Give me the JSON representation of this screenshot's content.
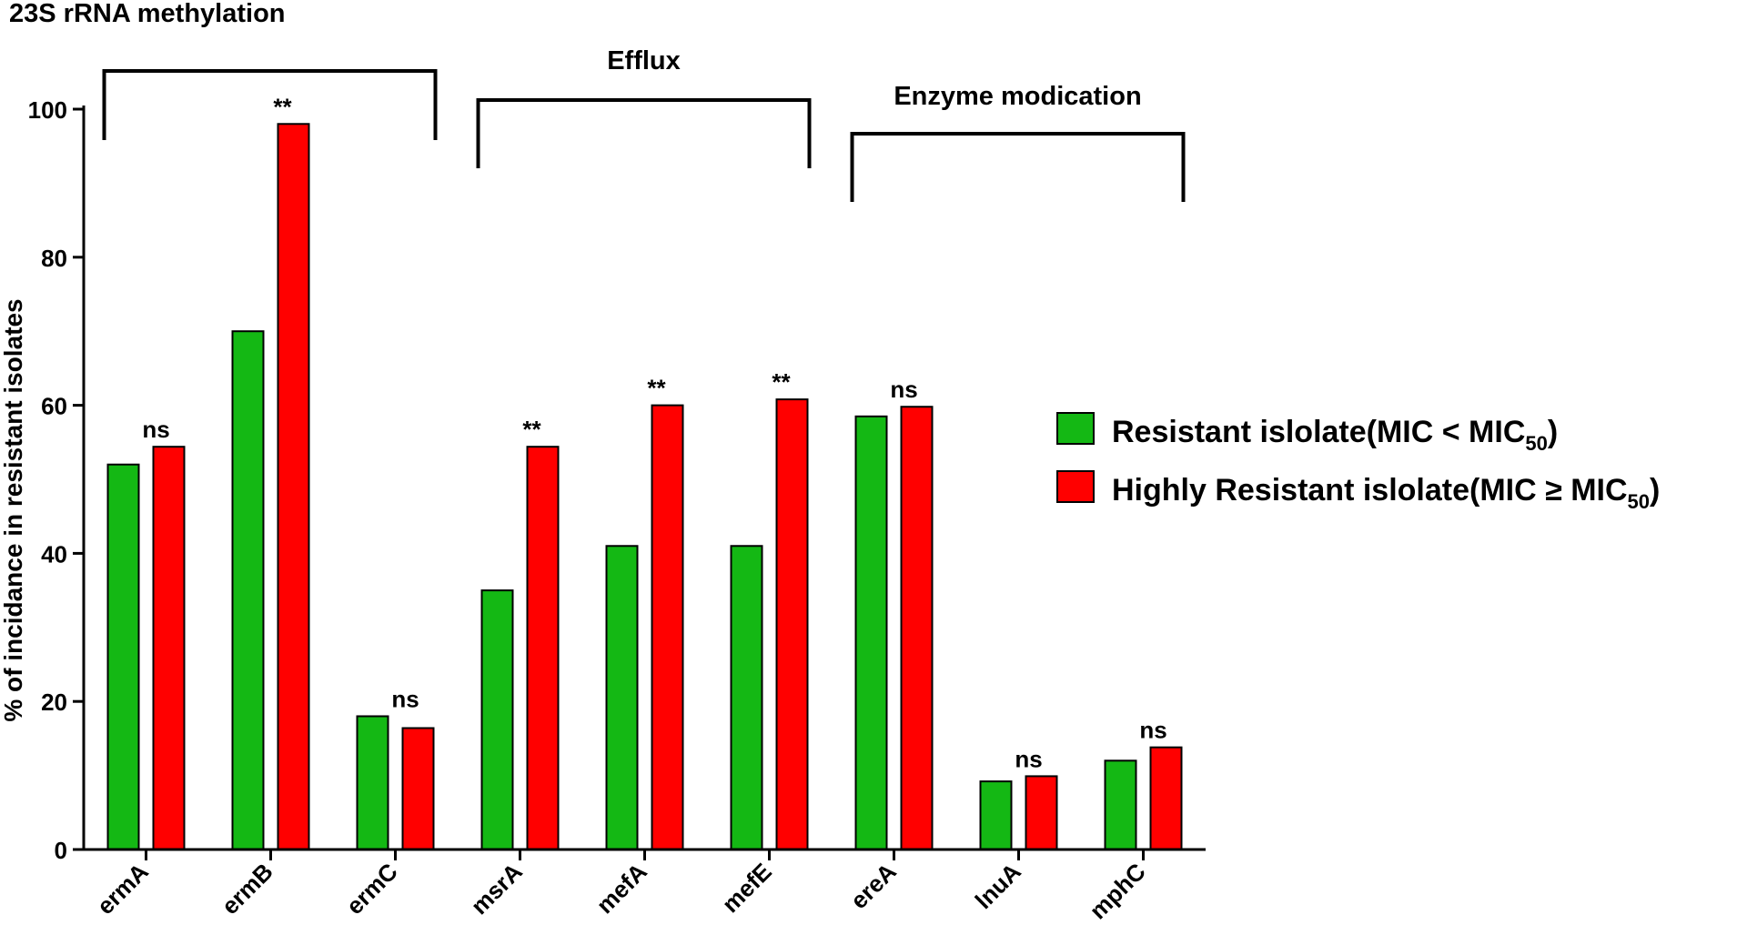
{
  "chart_data": {
    "type": "bar",
    "categories": [
      "ermA",
      "ermB",
      "ermC",
      "msrA",
      "mefA",
      "mefE",
      "ereA",
      "lnuA",
      "mphC"
    ],
    "series": [
      {
        "name": "Resistant islolate(MIC < MIC50)",
        "legend_main": "Resistant islolate(MIC < MIC",
        "legend_sub": "50",
        "legend_tail": ")",
        "color": "#14b814",
        "values": [
          52,
          70,
          18,
          35,
          41,
          41,
          58.5,
          9.2,
          12
        ]
      },
      {
        "name": "Highly Resistant islolate(MIC ≥ MIC50)",
        "legend_main": "Highly Resistant islolate(MIC ≥ MIC",
        "legend_sub": "50",
        "legend_tail": ")",
        "color": "#ff0000",
        "values": [
          54.4,
          98,
          16.4,
          54.4,
          60,
          60.8,
          59.8,
          9.9,
          13.8
        ]
      }
    ],
    "annotations": [
      "ns",
      "**",
      "ns",
      "**",
      "**",
      "**",
      "ns",
      "ns",
      "ns"
    ],
    "groups": [
      {
        "label": "23S rRNA methylation",
        "from": "ermA",
        "to": "ermC"
      },
      {
        "label": "Efflux",
        "from": "msrA",
        "to": "mefE"
      },
      {
        "label": "Enzyme modication",
        "from": "ereA",
        "to": "mphC"
      }
    ],
    "ylabel": "% of incidance in resistant isolates",
    "xlabel": "",
    "ylim": [
      0,
      100
    ],
    "yticks": [
      0,
      20,
      40,
      60,
      80,
      100
    ],
    "grid": false,
    "legend_position": "right"
  }
}
